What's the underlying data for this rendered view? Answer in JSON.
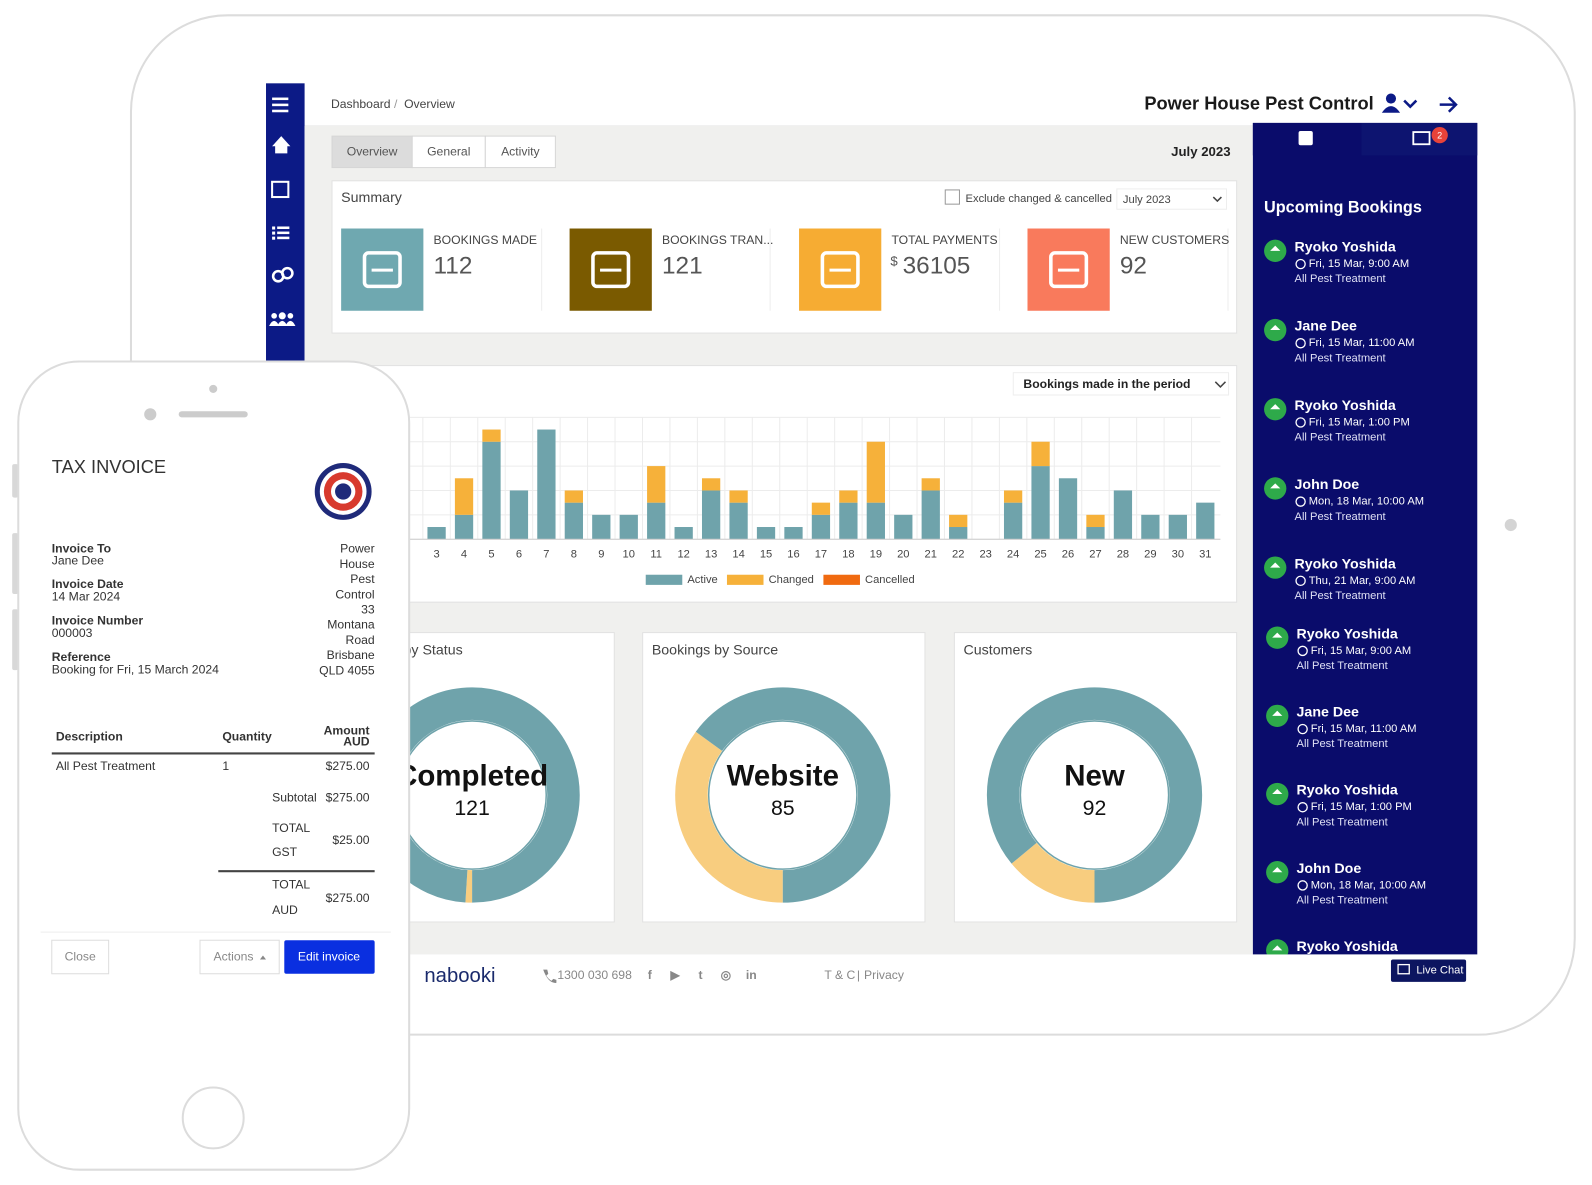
{
  "breadcrumb": [
    "Dashboard",
    "Overview"
  ],
  "header": {
    "company": "Power House Pest Control"
  },
  "tabs": [
    "Overview",
    "General",
    "Activity"
  ],
  "period": "July 2023",
  "summary": {
    "title": "Summary",
    "filter": "Exclude changed & cancelled",
    "period_select": "July 2023",
    "cards": [
      {
        "label": "BOOKINGS MADE",
        "value": 112,
        "color": "#6fa8b0"
      },
      {
        "label": "BOOKINGS TRAN...",
        "value": 121,
        "color": "#7a5a00"
      },
      {
        "label": "TOTAL PAYMENTS",
        "currency": "$",
        "value": 36105,
        "color": "#f6ac33"
      },
      {
        "label": "NEW CUSTOMERS",
        "value": 92,
        "color": "#f97a5c"
      }
    ]
  },
  "bar_chart": {
    "type": "bar",
    "selector": "Bookings made in the period",
    "categories": [
      "3",
      "4",
      "5",
      "6",
      "7",
      "8",
      "9",
      "10",
      "11",
      "12",
      "13",
      "14",
      "15",
      "16",
      "17",
      "18",
      "19",
      "20",
      "21",
      "22",
      "23",
      "24",
      "25",
      "26",
      "27",
      "28",
      "29",
      "30",
      "31"
    ],
    "series": [
      {
        "name": "Active",
        "color": "#6fa3ab",
        "values": [
          1,
          2,
          8,
          4,
          9,
          3,
          2,
          2,
          3,
          1,
          4,
          3,
          1,
          1,
          2,
          3,
          3,
          2,
          4,
          1,
          0,
          3,
          6,
          5,
          1,
          4,
          2,
          2,
          3
        ]
      },
      {
        "name": "Changed",
        "color": "#f6b13a",
        "values": [
          0,
          3,
          1,
          0,
          0,
          1,
          0,
          0,
          3,
          0,
          1,
          1,
          0,
          0,
          1,
          1,
          5,
          0,
          1,
          1,
          0,
          1,
          2,
          0,
          1,
          0,
          0,
          0,
          0
        ]
      },
      {
        "name": "Cancelled",
        "color": "#f06a10",
        "values": [
          0,
          0,
          0,
          0,
          0,
          0,
          0,
          0,
          0,
          0,
          0,
          0,
          0,
          0,
          0,
          0,
          0,
          0,
          0,
          0,
          0,
          0,
          0,
          0,
          0,
          0,
          0,
          0,
          0
        ]
      }
    ],
    "ylim": [
      0,
      10
    ],
    "grid": true
  },
  "donuts": [
    {
      "title": "Bookings by Status",
      "label": "Completed",
      "value": 121,
      "segments": [
        {
          "color": "#f8cd7f",
          "share": 1
        },
        {
          "color": "#6fa3ab",
          "share": 99
        }
      ]
    },
    {
      "title": "Bookings by Source",
      "label": "Website",
      "value": 85,
      "segments": [
        {
          "color": "#f8cd7f",
          "share": 35
        },
        {
          "color": "#6fa3ab",
          "share": 65
        }
      ]
    },
    {
      "title": "Customers",
      "label": "New",
      "value": 92,
      "segments": [
        {
          "color": "#f8cd7f",
          "share": 14
        },
        {
          "color": "#6fa3ab",
          "share": 86
        }
      ]
    }
  ],
  "notification_count": 2,
  "upcoming": {
    "title": "Upcoming Bookings",
    "items": [
      {
        "name": "Ryoko Yoshida",
        "time": "Fri, 15 Mar, 9:00 AM",
        "service": "All Pest Treatment"
      },
      {
        "name": "Jane Dee",
        "time": "Fri, 15 Mar, 11:00 AM",
        "service": "All Pest Treatment"
      },
      {
        "name": "Ryoko Yoshida",
        "time": "Fri, 15 Mar, 1:00 PM",
        "service": "All Pest Treatment"
      },
      {
        "name": "John Doe",
        "time": "Mon, 18 Mar, 10:00 AM",
        "service": "All Pest Treatment"
      },
      {
        "name": "Ryoko Yoshida",
        "time": "Thu, 21 Mar, 9:00 AM",
        "service": "All Pest Treatment"
      },
      {
        "name": "Ryoko Yoshida",
        "time": "Fri, 15 Mar, 9:00 AM",
        "service": "All Pest Treatment"
      },
      {
        "name": "Jane Dee",
        "time": "Fri, 15 Mar, 11:00 AM",
        "service": "All Pest Treatment"
      },
      {
        "name": "Ryoko Yoshida",
        "time": "Fri, 15 Mar, 1:00 PM",
        "service": "All Pest Treatment"
      },
      {
        "name": "John Doe",
        "time": "Mon, 18 Mar, 10:00 AM",
        "service": "All Pest Treatment"
      },
      {
        "name": "Ryoko Yoshida"
      }
    ]
  },
  "footer": {
    "brand": "nabooki",
    "phone": "1300 030 698",
    "links": [
      "T & C",
      "Privacy"
    ],
    "chat": "Live Chat"
  },
  "invoice": {
    "title": "TAX INVOICE",
    "fields": [
      {
        "label": "Invoice To",
        "value": "Jane Dee"
      },
      {
        "label": "Invoice Date",
        "value": "14 Mar 2024"
      },
      {
        "label": "Invoice Number",
        "value": "000003"
      },
      {
        "label": "Reference",
        "value": "Booking for Fri, 15 March 2024"
      }
    ],
    "address": [
      "Power",
      "House",
      "Pest",
      "Control",
      "33",
      "Montana",
      "Road",
      "Brisbane",
      "QLD 4055"
    ],
    "table": {
      "header": {
        "description": "Description",
        "quantity": "Quantity",
        "amount": [
          "Amount",
          "AUD"
        ]
      },
      "rows": [
        {
          "description": "All Pest Treatment",
          "quantity": 1,
          "amount": "$275.00"
        }
      ]
    },
    "subtotal": {
      "label": "Subtotal",
      "value": "$275.00"
    },
    "gst": {
      "label": [
        "TOTAL",
        "GST"
      ],
      "value": "$25.00"
    },
    "total": {
      "label": [
        "TOTAL",
        "AUD"
      ],
      "value": "$275.00"
    },
    "buttons": [
      "Close",
      "Actions",
      "Edit invoice"
    ]
  }
}
